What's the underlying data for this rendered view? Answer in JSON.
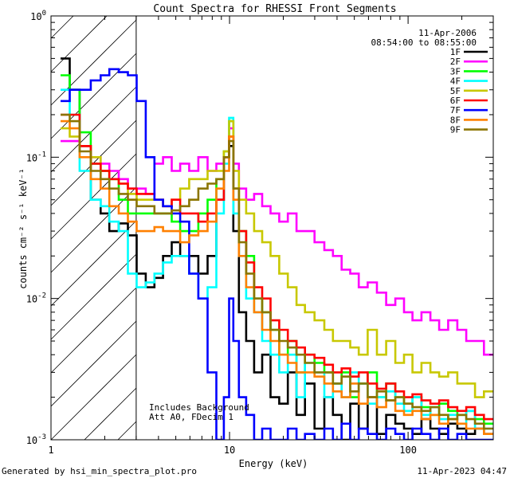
{
  "chart_data": {
    "type": "line",
    "title": "Count Spectra for RHESSI Front Segments",
    "xlabel": "Energy (keV)",
    "ylabel": "counts cm⁻² s⁻¹ keV⁻¹",
    "xscale": "log",
    "yscale": "log",
    "xlim": [
      1,
      300
    ],
    "ylim": [
      0.001,
      1
    ],
    "x_ticks": [
      {
        "value": 1,
        "label": "1"
      },
      {
        "value": 10,
        "label": "10"
      },
      {
        "value": 100,
        "label": "100"
      }
    ],
    "y_ticks": [
      {
        "value": 1,
        "base": "10",
        "exp": "0"
      },
      {
        "value": 0.1,
        "base": "10",
        "exp": "-1"
      },
      {
        "value": 0.01,
        "base": "10",
        "exp": "-2"
      },
      {
        "value": 0.001,
        "base": "10",
        "exp": "-3"
      }
    ],
    "date": "11-Apr-2006",
    "time_range": "08:54:00 to 08:55:00",
    "annotations": [
      "Includes Background",
      "Att A0, FDecim 1"
    ],
    "excluded_region_keV": [
      1,
      3
    ],
    "x": [
      1.2,
      1.35,
      1.55,
      1.8,
      2.0,
      2.25,
      2.55,
      2.85,
      3.2,
      3.6,
      4.0,
      4.5,
      5.0,
      5.6,
      6.3,
      7.1,
      8.0,
      8.9,
      9.7,
      10.2,
      10.8,
      11.8,
      13,
      14.5,
      16,
      18,
      20,
      22.5,
      25,
      28,
      32,
      36,
      40,
      45,
      50,
      56,
      63,
      71,
      80,
      90,
      100,
      112,
      126,
      141,
      158,
      178,
      200,
      224,
      251,
      282
    ],
    "series": [
      {
        "name": "1F",
        "color": "#000000",
        "values": [
          0.5,
          0.3,
          0.12,
          0.05,
          0.04,
          0.03,
          0.034,
          0.028,
          0.015,
          0.012,
          0.014,
          0.02,
          0.025,
          0.02,
          0.02,
          0.015,
          0.02,
          0.05,
          0.1,
          0.12,
          0.03,
          0.008,
          0.005,
          0.003,
          0.004,
          0.002,
          0.0018,
          0.003,
          0.0015,
          0.0025,
          0.0012,
          0.002,
          0.0015,
          0.001,
          0.0018,
          0.0012,
          0.002,
          0.0011,
          0.0015,
          0.0013,
          0.0012,
          0.0011,
          0.0014,
          0.0012,
          0.0011,
          0.0013,
          0.0012,
          0.0011,
          0.0012,
          0.0011
        ]
      },
      {
        "name": "2F",
        "color": "#ff00ff",
        "values": [
          0.13,
          0.13,
          0.12,
          0.1,
          0.09,
          0.08,
          0.07,
          0.06,
          0.06,
          0.055,
          0.09,
          0.1,
          0.08,
          0.09,
          0.08,
          0.1,
          0.08,
          0.09,
          0.1,
          0.16,
          0.09,
          0.06,
          0.05,
          0.055,
          0.045,
          0.04,
          0.035,
          0.04,
          0.03,
          0.03,
          0.025,
          0.022,
          0.02,
          0.016,
          0.015,
          0.012,
          0.013,
          0.011,
          0.009,
          0.01,
          0.008,
          0.007,
          0.008,
          0.007,
          0.006,
          0.007,
          0.006,
          0.005,
          0.005,
          0.004
        ]
      },
      {
        "name": "3F",
        "color": "#00ff00",
        "values": [
          0.38,
          0.3,
          0.15,
          0.09,
          0.08,
          0.07,
          0.05,
          0.04,
          0.04,
          0.04,
          0.04,
          0.04,
          0.035,
          0.03,
          0.03,
          0.04,
          0.05,
          0.07,
          0.11,
          0.18,
          0.06,
          0.03,
          0.02,
          0.01,
          0.008,
          0.006,
          0.004,
          0.005,
          0.003,
          0.004,
          0.0035,
          0.003,
          0.0025,
          0.003,
          0.002,
          0.0025,
          0.003,
          0.002,
          0.0025,
          0.002,
          0.0018,
          0.002,
          0.0017,
          0.0015,
          0.0018,
          0.0016,
          0.0015,
          0.0016,
          0.0014,
          0.0013
        ]
      },
      {
        "name": "4F",
        "color": "#00ffff",
        "values": [
          0.3,
          0.2,
          0.08,
          0.05,
          0.045,
          0.035,
          0.03,
          0.015,
          0.012,
          0.013,
          0.015,
          0.018,
          0.02,
          0.02,
          0.015,
          0.01,
          0.012,
          0.04,
          0.09,
          0.19,
          0.04,
          0.02,
          0.01,
          0.008,
          0.005,
          0.004,
          0.003,
          0.004,
          0.002,
          0.0035,
          0.003,
          0.002,
          0.0025,
          0.002,
          0.003,
          0.0025,
          0.0018,
          0.002,
          0.0022,
          0.0018,
          0.0016,
          0.002,
          0.0015,
          0.0017,
          0.0014,
          0.0015,
          0.0013,
          0.0016,
          0.0012,
          0.0012
        ]
      },
      {
        "name": "5F",
        "color": "#c8c800",
        "values": [
          0.16,
          0.14,
          0.12,
          0.1,
          0.08,
          0.07,
          0.065,
          0.055,
          0.05,
          0.05,
          0.05,
          0.045,
          0.05,
          0.06,
          0.07,
          0.07,
          0.08,
          0.08,
          0.11,
          0.18,
          0.08,
          0.05,
          0.04,
          0.03,
          0.025,
          0.02,
          0.015,
          0.012,
          0.009,
          0.008,
          0.007,
          0.006,
          0.005,
          0.005,
          0.0045,
          0.004,
          0.006,
          0.004,
          0.005,
          0.0035,
          0.004,
          0.003,
          0.0035,
          0.003,
          0.0028,
          0.003,
          0.0025,
          0.0025,
          0.002,
          0.0022
        ]
      },
      {
        "name": "6F",
        "color": "#ff0000",
        "values": [
          0.2,
          0.2,
          0.12,
          0.09,
          0.08,
          0.07,
          0.065,
          0.06,
          0.055,
          0.055,
          0.05,
          0.045,
          0.05,
          0.04,
          0.04,
          0.035,
          0.04,
          0.05,
          0.1,
          0.14,
          0.06,
          0.03,
          0.018,
          0.012,
          0.01,
          0.007,
          0.006,
          0.005,
          0.0045,
          0.004,
          0.0038,
          0.0034,
          0.003,
          0.0032,
          0.0028,
          0.003,
          0.0025,
          0.0023,
          0.0025,
          0.0022,
          0.002,
          0.0021,
          0.0019,
          0.0018,
          0.0019,
          0.0017,
          0.0016,
          0.0017,
          0.0015,
          0.0014
        ]
      },
      {
        "name": "7F",
        "color": "#0000ff",
        "values": [
          0.25,
          0.3,
          0.3,
          0.35,
          0.38,
          0.42,
          0.4,
          0.38,
          0.25,
          0.1,
          0.05,
          0.045,
          0.04,
          0.035,
          0.015,
          0.01,
          0.003,
          0.001,
          0.002,
          0.01,
          0.005,
          0.002,
          0.0015,
          0.001,
          0.0012,
          0.001,
          0.001,
          0.0012,
          0.001,
          0.0011,
          0.001,
          0.0012,
          0.001,
          0.0013,
          0.001,
          0.0012,
          0.0011,
          0.001,
          0.0012,
          0.0011,
          0.001,
          0.0012,
          0.0011,
          0.001,
          0.0012,
          0.001,
          0.0011,
          0.001,
          0.001,
          0.001
        ]
      },
      {
        "name": "8F",
        "color": "#ff8000",
        "values": [
          0.18,
          0.16,
          0.1,
          0.07,
          0.06,
          0.045,
          0.04,
          0.035,
          0.03,
          0.03,
          0.032,
          0.03,
          0.03,
          0.025,
          0.028,
          0.03,
          0.035,
          0.06,
          0.08,
          0.14,
          0.05,
          0.02,
          0.012,
          0.008,
          0.006,
          0.005,
          0.004,
          0.0035,
          0.003,
          0.003,
          0.0028,
          0.0025,
          0.0022,
          0.002,
          0.0025,
          0.0018,
          0.002,
          0.0017,
          0.0019,
          0.0016,
          0.0015,
          0.0016,
          0.0014,
          0.0015,
          0.0013,
          0.0014,
          0.0013,
          0.0012,
          0.0012,
          0.0011
        ]
      },
      {
        "name": "9F",
        "color": "#8b7500",
        "values": [
          0.2,
          0.18,
          0.11,
          0.08,
          0.07,
          0.06,
          0.055,
          0.05,
          0.045,
          0.045,
          0.04,
          0.04,
          0.042,
          0.045,
          0.05,
          0.06,
          0.065,
          0.07,
          0.1,
          0.13,
          0.06,
          0.025,
          0.015,
          0.01,
          0.008,
          0.006,
          0.005,
          0.0045,
          0.004,
          0.0035,
          0.003,
          0.003,
          0.0025,
          0.0028,
          0.0022,
          0.0025,
          0.002,
          0.0022,
          0.0019,
          0.002,
          0.0018,
          0.0017,
          0.0016,
          0.0017,
          0.0015,
          0.0014,
          0.0015,
          0.0014,
          0.0013,
          0.0012
        ]
      }
    ]
  },
  "footer": {
    "generated_by": "Generated by hsi_min_spectra_plot.pro",
    "timestamp": "11-Apr-2023 04:47"
  }
}
